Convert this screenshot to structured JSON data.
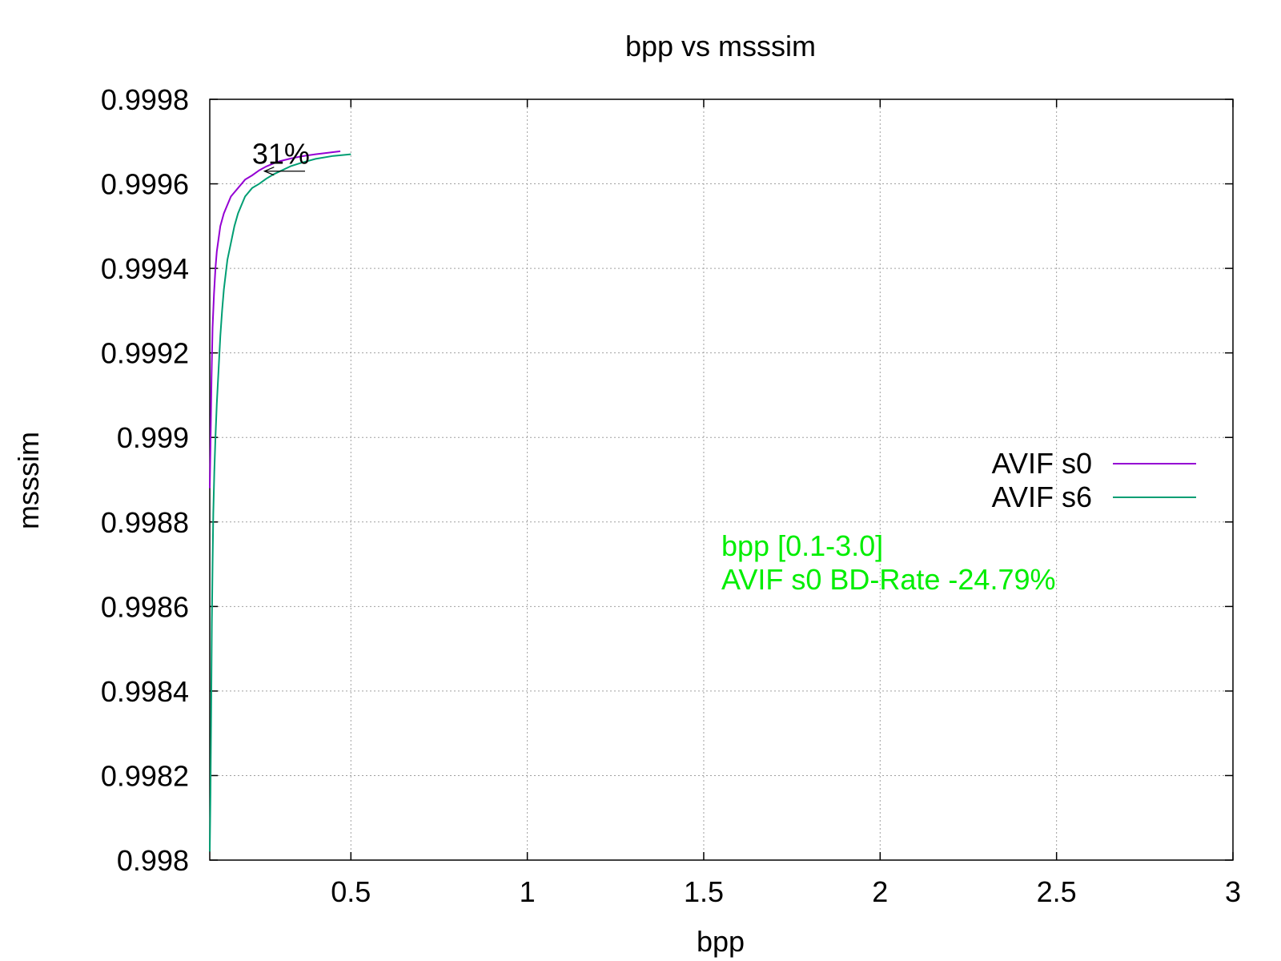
{
  "chart_data": {
    "type": "line",
    "title": "bpp vs msssim",
    "xlabel": "bpp",
    "ylabel": "msssim",
    "xlim": [
      0.1,
      3.0
    ],
    "ylim": [
      0.998,
      0.9998
    ],
    "x_ticks": [
      0.5,
      1,
      1.5,
      2,
      2.5,
      3
    ],
    "x_tick_labels": [
      "0.5",
      "1",
      "1.5",
      "2",
      "2.5",
      "3"
    ],
    "y_ticks": [
      0.998,
      0.9982,
      0.9984,
      0.9986,
      0.9988,
      0.999,
      0.9992,
      0.9994,
      0.9996,
      0.9998
    ],
    "y_tick_labels": [
      "0.998",
      "0.9982",
      "0.9984",
      "0.9986",
      "0.9988",
      "0.999",
      "0.9992",
      "0.9994",
      "0.9996",
      "0.9998"
    ],
    "grid": true,
    "legend_position": "right",
    "series": [
      {
        "name": "AVIF s0",
        "color": "#9400d3",
        "x": [
          0.1,
          0.102,
          0.105,
          0.108,
          0.112,
          0.116,
          0.12,
          0.125,
          0.13,
          0.14,
          0.15,
          0.16,
          0.17,
          0.18,
          0.19,
          0.2,
          0.22,
          0.24,
          0.26,
          0.28,
          0.3,
          0.33,
          0.36,
          0.4,
          0.44,
          0.47
        ],
        "y": [
          0.99888,
          0.99898,
          0.99914,
          0.99926,
          0.99934,
          0.9994,
          0.99944,
          0.99947,
          0.9995,
          0.99953,
          0.99955,
          0.99957,
          0.99958,
          0.99959,
          0.9996,
          0.99961,
          0.99962,
          0.999632,
          0.999641,
          0.999648,
          0.999654,
          0.99966,
          0.999665,
          0.99967,
          0.999674,
          0.999677
        ]
      },
      {
        "name": "AVIF s6",
        "color": "#009e73",
        "x": [
          0.1,
          0.102,
          0.104,
          0.106,
          0.108,
          0.11,
          0.113,
          0.116,
          0.12,
          0.125,
          0.13,
          0.135,
          0.14,
          0.15,
          0.16,
          0.17,
          0.18,
          0.19,
          0.2,
          0.22,
          0.24,
          0.26,
          0.28,
          0.3,
          0.33,
          0.36,
          0.4,
          0.45,
          0.5
        ],
        "y": [
          0.99802,
          0.99816,
          0.99836,
          0.99856,
          0.9987,
          0.99882,
          0.99892,
          0.999,
          0.99908,
          0.99916,
          0.99924,
          0.9993,
          0.99935,
          0.99942,
          0.99946,
          0.9995,
          0.99953,
          0.99955,
          0.99957,
          0.99959,
          0.9996,
          0.999612,
          0.999622,
          0.99963,
          0.999642,
          0.99965,
          0.999659,
          0.999666,
          0.99967
        ]
      }
    ],
    "annotations": [
      {
        "text": "31%",
        "x": 0.22,
        "y": 0.99967,
        "arrow": {
          "from_x": 0.37,
          "from_y": 0.99963,
          "to_x": 0.255,
          "to_y": 0.99963
        }
      }
    ],
    "note_lines": [
      "bpp [0.1-3.0]",
      "AVIF s0 BD-Rate -24.79%"
    ],
    "note_color": "#00ee00",
    "note_position": {
      "x": 1.55,
      "y": 0.99872
    }
  }
}
